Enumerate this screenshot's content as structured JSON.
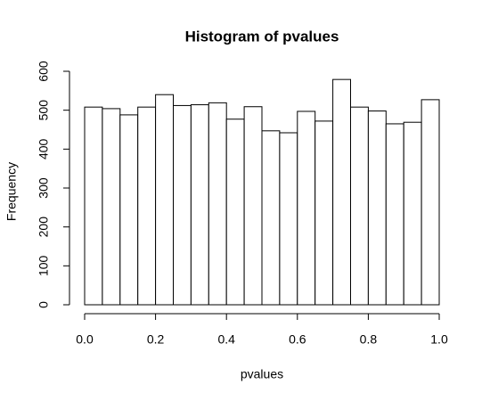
{
  "chart_data": {
    "type": "histogram",
    "title": "Histogram of pvalues",
    "xlabel": "pvalues",
    "ylabel": "Frequency",
    "bins": [
      0,
      0.05,
      0.1,
      0.15,
      0.2,
      0.25,
      0.3,
      0.35,
      0.4,
      0.45,
      0.5,
      0.55,
      0.6,
      0.65,
      0.7,
      0.75,
      0.8,
      0.85,
      0.9,
      0.95,
      1
    ],
    "values": [
      508,
      504,
      488,
      508,
      540,
      512,
      514,
      519,
      477,
      509,
      447,
      442,
      497,
      472,
      579,
      508,
      498,
      465,
      469,
      527
    ],
    "color": "#ffffff",
    "xlim": [
      0,
      1
    ],
    "xticks": [
      {
        "value": 0,
        "label": "0.0"
      },
      0.2,
      0.4,
      0.6,
      0.8,
      {
        "value": 1,
        "label": "1.0"
      }
    ],
    "ylim": [
      0,
      600
    ],
    "yticks": [
      0,
      100,
      200,
      300,
      400,
      500,
      600
    ],
    "grid": false
  }
}
